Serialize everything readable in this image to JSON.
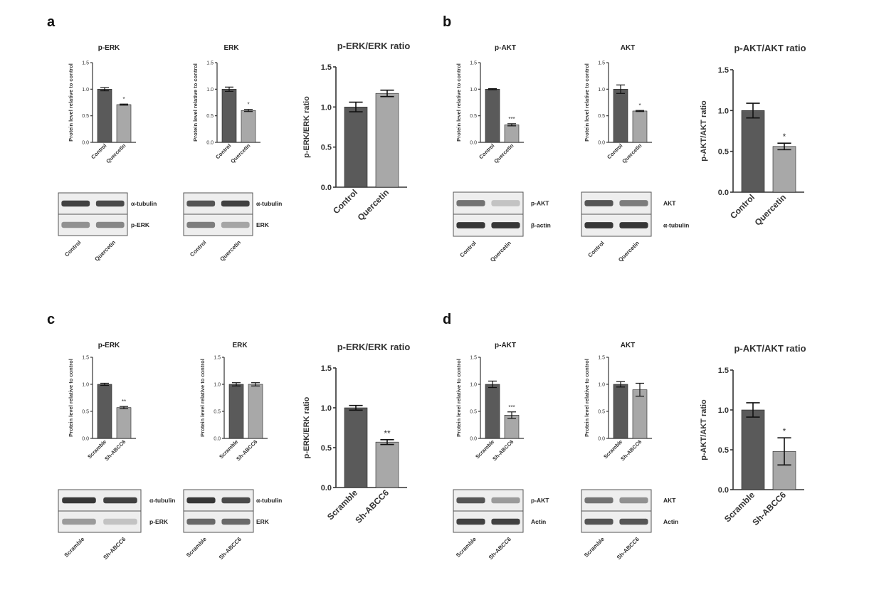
{
  "panels": [
    {
      "letter": "a"
    },
    {
      "letter": "b"
    },
    {
      "letter": "c"
    },
    {
      "letter": "d"
    }
  ],
  "colors": {
    "bar_control": "#5a5a5a",
    "bar_treated": "#a8a8a8",
    "axis": "#333333"
  },
  "y_axis_label_small": "Protein level relative to control",
  "chart_data": [
    {
      "id": "a-perk",
      "type": "bar",
      "title": "p-ERK",
      "ylabel": "Protein level relative to control",
      "categories": [
        "Control",
        "Quercetin"
      ],
      "values": [
        1.0,
        0.71
      ],
      "errors": [
        0.03,
        0.01
      ],
      "significance": [
        "",
        "*"
      ],
      "ylim": [
        0,
        1.5
      ],
      "yticks": [
        "0.0",
        "0.5",
        "1.0",
        "1.5"
      ]
    },
    {
      "id": "a-erk",
      "type": "bar",
      "title": "ERK",
      "ylabel": "Protein level relative to control",
      "categories": [
        "Control",
        "Quercetin"
      ],
      "values": [
        1.0,
        0.6
      ],
      "errors": [
        0.04,
        0.02
      ],
      "significance": [
        "",
        "*"
      ],
      "ylim": [
        0,
        1.5
      ],
      "yticks": [
        "0.0",
        "0.5",
        "1.0",
        "1.5"
      ]
    },
    {
      "id": "a-ratio",
      "type": "bar",
      "title": "p-ERK/ERK ratio",
      "ylabel": "p-ERK/ERK ratio",
      "categories": [
        "Control",
        "Quercetin"
      ],
      "values": [
        1.0,
        1.17
      ],
      "errors": [
        0.06,
        0.04
      ],
      "significance": [
        "",
        ""
      ],
      "ylim": [
        0,
        1.5
      ],
      "yticks": [
        "0.0",
        "0.5",
        "1.0",
        "1.5"
      ]
    },
    {
      "id": "b-pakt",
      "type": "bar",
      "title": "p-AKT",
      "ylabel": "Protein level relative to control",
      "categories": [
        "Control",
        "Quercetin"
      ],
      "values": [
        1.0,
        0.33
      ],
      "errors": [
        0.01,
        0.02
      ],
      "significance": [
        "",
        "***"
      ],
      "ylim": [
        0,
        1.5
      ],
      "yticks": [
        "0.0",
        "0.5",
        "1.0",
        "1.5"
      ]
    },
    {
      "id": "b-akt",
      "type": "bar",
      "title": "AKT",
      "ylabel": "Protein level relative to control",
      "categories": [
        "Control",
        "Quercetin"
      ],
      "values": [
        1.0,
        0.59
      ],
      "errors": [
        0.08,
        0.01
      ],
      "significance": [
        "",
        "*"
      ],
      "ylim": [
        0,
        1.5
      ],
      "yticks": [
        "0.0",
        "0.5",
        "1.0",
        "1.5"
      ]
    },
    {
      "id": "b-ratio",
      "type": "bar",
      "title": "p-AKT/AKT ratio",
      "ylabel": "p-AKT/AKT ratio",
      "categories": [
        "Control",
        "Quercetin"
      ],
      "values": [
        1.0,
        0.56
      ],
      "errors": [
        0.09,
        0.04
      ],
      "significance": [
        "",
        "*"
      ],
      "ylim": [
        0,
        1.5
      ],
      "yticks": [
        "0.0",
        "0.5",
        "1.0",
        "1.5"
      ]
    },
    {
      "id": "c-perk",
      "type": "bar",
      "title": "p-ERK",
      "ylabel": "Protein level relative to control",
      "categories": [
        "Scramble",
        "Sh-ABCC6"
      ],
      "values": [
        1.0,
        0.57
      ],
      "errors": [
        0.02,
        0.02
      ],
      "significance": [
        "",
        "**"
      ],
      "ylim": [
        0,
        1.5
      ],
      "yticks": [
        "0.0",
        "0.5",
        "1.0",
        "1.5"
      ]
    },
    {
      "id": "c-erk",
      "type": "bar",
      "title": "ERK",
      "ylabel": "Protein level relative to control",
      "categories": [
        "Scramble",
        "Sh-ABCC6"
      ],
      "values": [
        1.0,
        1.0
      ],
      "errors": [
        0.03,
        0.03
      ],
      "significance": [
        "",
        ""
      ],
      "ylim": [
        0,
        1.5
      ],
      "yticks": [
        "0.0",
        "0.5",
        "1.0",
        "1.5"
      ]
    },
    {
      "id": "c-ratio",
      "type": "bar",
      "title": "p-ERK/ERK ratio",
      "ylabel": "p-ERK/ERK ratio",
      "categories": [
        "Scramble",
        "Sh-ABCC6"
      ],
      "values": [
        1.0,
        0.57
      ],
      "errors": [
        0.03,
        0.03
      ],
      "significance": [
        "",
        "**"
      ],
      "ylim": [
        0,
        1.5
      ],
      "yticks": [
        "0.0",
        "0.5",
        "1.0",
        "1.5"
      ]
    },
    {
      "id": "d-pakt",
      "type": "bar",
      "title": "p-AKT",
      "ylabel": "Protein level relative to control",
      "categories": [
        "Scramble",
        "Sh-ABCC6"
      ],
      "values": [
        1.0,
        0.43
      ],
      "errors": [
        0.06,
        0.06
      ],
      "significance": [
        "",
        "***"
      ],
      "ylim": [
        0,
        1.5
      ],
      "yticks": [
        "0.0",
        "0.5",
        "1.0",
        "1.5"
      ]
    },
    {
      "id": "d-akt",
      "type": "bar",
      "title": "AKT",
      "ylabel": "Protein level relative to control",
      "categories": [
        "Scramble",
        "Sh-ABCC6"
      ],
      "values": [
        1.0,
        0.9
      ],
      "errors": [
        0.05,
        0.12
      ],
      "significance": [
        "",
        ""
      ],
      "ylim": [
        0,
        1.5
      ],
      "yticks": [
        "0.0",
        "0.5",
        "1.0",
        "1.5"
      ]
    },
    {
      "id": "d-ratio",
      "type": "bar",
      "title": "p-AKT/AKT ratio",
      "ylabel": "p-AKT/AKT ratio",
      "categories": [
        "Scramble",
        "Sh-ABCC6"
      ],
      "values": [
        1.0,
        0.48
      ],
      "errors": [
        0.09,
        0.17
      ],
      "significance": [
        "",
        "*"
      ],
      "ylim": [
        0,
        1.5
      ],
      "yticks": [
        "0.0",
        "0.5",
        "1.0",
        "1.5"
      ]
    }
  ],
  "blots": [
    {
      "id": "a-blot1",
      "lanes": [
        "Control",
        "Quercetin"
      ],
      "rows": [
        {
          "label": "α-tubulin",
          "intensity": [
            0.85,
            0.8
          ]
        },
        {
          "label": "p-ERK",
          "intensity": [
            0.45,
            0.5
          ]
        }
      ]
    },
    {
      "id": "a-blot2",
      "lanes": [
        "Control",
        "Quercetin"
      ],
      "rows": [
        {
          "label": "α-tubulin",
          "intensity": [
            0.75,
            0.85
          ]
        },
        {
          "label": "ERK",
          "intensity": [
            0.55,
            0.35
          ]
        }
      ]
    },
    {
      "id": "b-blot1",
      "lanes": [
        "Control",
        "Quercetin"
      ],
      "rows": [
        {
          "label": "p-AKT",
          "intensity": [
            0.6,
            0.2
          ]
        },
        {
          "label": "β-actin",
          "intensity": [
            0.9,
            0.9
          ]
        }
      ]
    },
    {
      "id": "b-blot2",
      "lanes": [
        "Control",
        "Quercetin"
      ],
      "rows": [
        {
          "label": "AKT",
          "intensity": [
            0.75,
            0.55
          ]
        },
        {
          "label": "α-tubulin",
          "intensity": [
            0.9,
            0.9
          ]
        }
      ]
    },
    {
      "id": "c-blot1",
      "lanes": [
        "Scramble",
        "Sh-ABCC6"
      ],
      "rows": [
        {
          "label": "α-tubulin",
          "intensity": [
            0.9,
            0.85
          ]
        },
        {
          "label": "p-ERK",
          "intensity": [
            0.4,
            0.2
          ]
        }
      ]
    },
    {
      "id": "c-blot2",
      "lanes": [
        "Scramble",
        "Sh-ABCC6"
      ],
      "rows": [
        {
          "label": "α-tubulin",
          "intensity": [
            0.9,
            0.8
          ]
        },
        {
          "label": "ERK",
          "intensity": [
            0.65,
            0.65
          ]
        }
      ]
    },
    {
      "id": "d-blot1",
      "lanes": [
        "Scramble",
        "Sh-ABCC6"
      ],
      "rows": [
        {
          "label": "p-AKT",
          "intensity": [
            0.75,
            0.4
          ]
        },
        {
          "label": "Actin",
          "intensity": [
            0.85,
            0.85
          ]
        }
      ]
    },
    {
      "id": "d-blot2",
      "lanes": [
        "Scramble",
        "Sh-ABCC6"
      ],
      "rows": [
        {
          "label": "AKT",
          "intensity": [
            0.6,
            0.45
          ]
        },
        {
          "label": "Actin",
          "intensity": [
            0.75,
            0.75
          ]
        }
      ]
    }
  ]
}
